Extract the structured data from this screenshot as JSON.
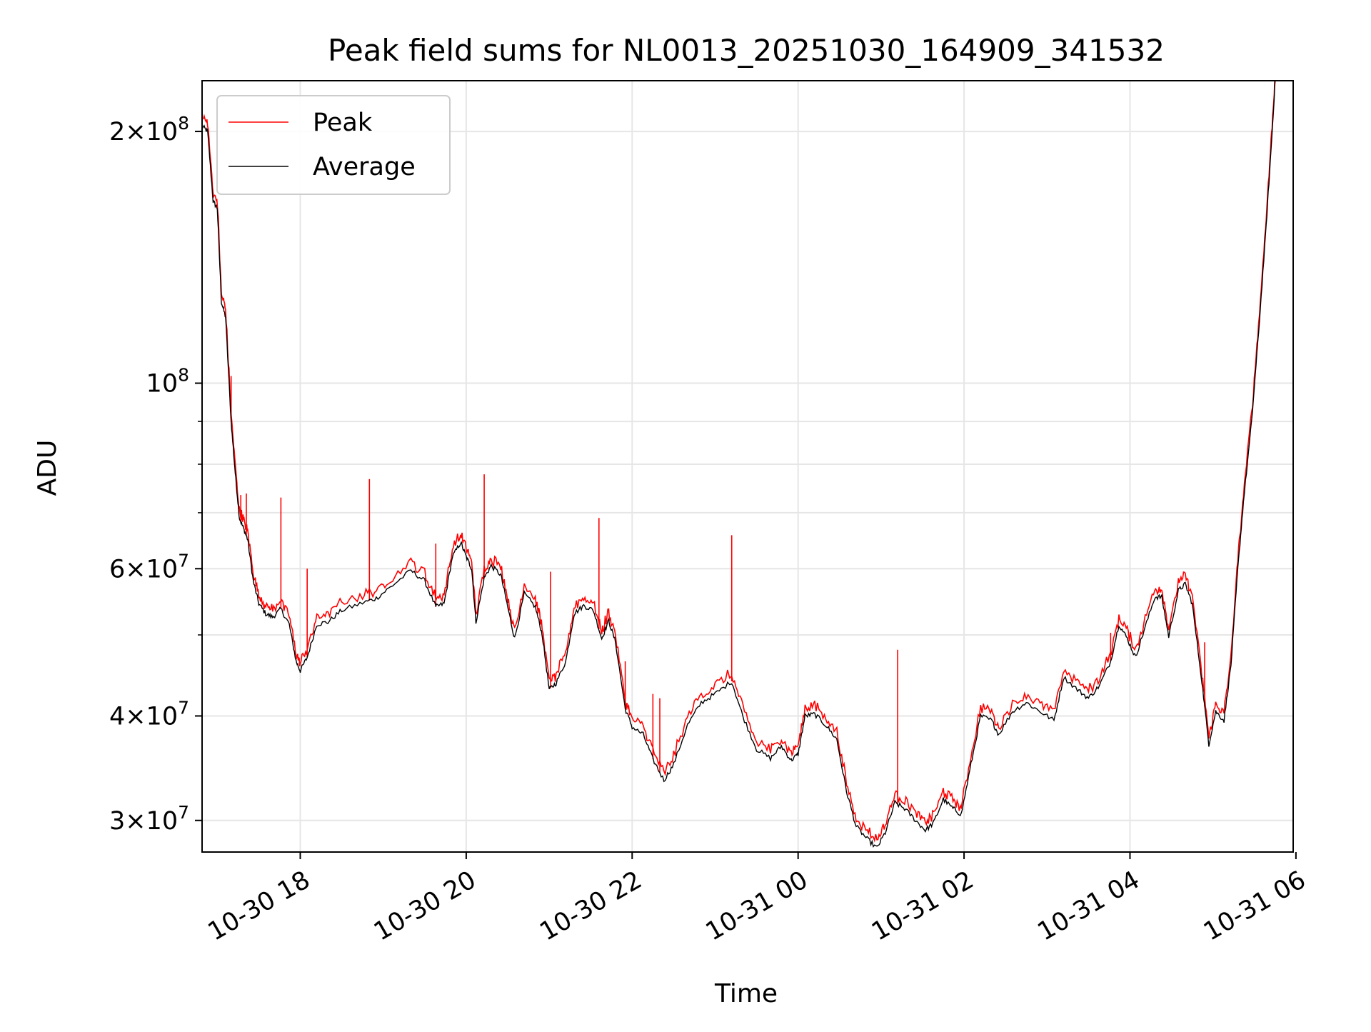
{
  "chart_data": {
    "type": "line",
    "title": "Peak field sums for NL0013_20251030_164909_341532",
    "xlabel": "Time",
    "ylabel": "ADU",
    "x_unit": "datetime",
    "xlim": [
      "2025-10-30 16:49",
      "2025-10-31 05:58"
    ],
    "ylim": [
      27500000,
      230000000
    ],
    "yscale": "log",
    "grid": true,
    "legend_position": "top-left",
    "x_ticks": [
      {
        "label": "10-30 18",
        "value": "2025-10-30 18:00"
      },
      {
        "label": "10-30 20",
        "value": "2025-10-30 20:00"
      },
      {
        "label": "10-30 22",
        "value": "2025-10-30 22:00"
      },
      {
        "label": "10-31 00",
        "value": "2025-10-31 00:00"
      },
      {
        "label": "10-31 02",
        "value": "2025-10-31 02:00"
      },
      {
        "label": "10-31 04",
        "value": "2025-10-31 04:00"
      },
      {
        "label": "10-31 06",
        "value": "2025-10-31 06:00"
      }
    ],
    "y_ticks": [
      {
        "value": 30000000,
        "mantissa": "3",
        "exponent": "7"
      },
      {
        "value": 40000000,
        "mantissa": "4",
        "exponent": "7"
      },
      {
        "value": 60000000,
        "mantissa": "6",
        "exponent": "7"
      },
      {
        "value": 100000000,
        "mantissa": "",
        "exponent": "8"
      },
      {
        "value": 200000000,
        "mantissa": "2",
        "exponent": "8"
      }
    ],
    "y_minor_ticks": [
      50000000,
      70000000,
      80000000,
      90000000
    ],
    "series": [
      {
        "name": "Peak",
        "color": "#ff0000",
        "spikes": [
          {
            "t": "2025-10-30 17:10",
            "y": 102000000
          },
          {
            "t": "2025-10-30 17:17",
            "y": 73500000
          },
          {
            "t": "2025-10-30 17:21",
            "y": 73800000
          },
          {
            "t": "2025-10-30 17:46",
            "y": 73000000
          },
          {
            "t": "2025-10-30 18:05",
            "y": 60000000
          },
          {
            "t": "2025-10-30 18:50",
            "y": 76800000
          },
          {
            "t": "2025-10-30 19:38",
            "y": 64300000
          },
          {
            "t": "2025-10-30 20:13",
            "y": 77800000
          },
          {
            "t": "2025-10-30 21:01",
            "y": 59500000
          },
          {
            "t": "2025-10-30 21:36",
            "y": 69000000
          },
          {
            "t": "2025-10-30 21:55",
            "y": 46500000
          },
          {
            "t": "2025-10-30 22:15",
            "y": 42500000
          },
          {
            "t": "2025-10-30 22:20",
            "y": 42000000
          },
          {
            "t": "2025-10-30 23:12",
            "y": 65800000
          },
          {
            "t": "2025-10-31 01:12",
            "y": 48000000
          },
          {
            "t": "2025-10-31 03:46",
            "y": 50300000
          },
          {
            "t": "2025-10-31 04:54",
            "y": 49000000
          }
        ]
      },
      {
        "name": "Average",
        "color": "#000000",
        "points": [
          [
            "2025-10-30 16:49",
            203000000
          ],
          [
            "2025-10-30 16:53",
            200000000
          ],
          [
            "2025-10-30 16:57",
            165000000
          ],
          [
            "2025-10-30 17:00",
            162000000
          ],
          [
            "2025-10-30 17:03",
            125000000
          ],
          [
            "2025-10-30 17:06",
            120000000
          ],
          [
            "2025-10-30 17:10",
            90000000
          ],
          [
            "2025-10-30 17:13",
            78000000
          ],
          [
            "2025-10-30 17:16",
            69000000
          ],
          [
            "2025-10-30 17:19",
            67000000
          ],
          [
            "2025-10-30 17:22",
            65000000
          ],
          [
            "2025-10-30 17:26",
            58000000
          ],
          [
            "2025-10-30 17:30",
            54500000
          ],
          [
            "2025-10-30 17:35",
            53000000
          ],
          [
            "2025-10-30 17:40",
            52500000
          ],
          [
            "2025-10-30 17:46",
            53700000
          ],
          [
            "2025-10-30 17:52",
            51500000
          ],
          [
            "2025-10-30 17:57",
            46500000
          ],
          [
            "2025-10-30 18:00",
            45300000
          ],
          [
            "2025-10-30 18:05",
            47000000
          ],
          [
            "2025-10-30 18:12",
            51500000
          ],
          [
            "2025-10-30 18:20",
            51800000
          ],
          [
            "2025-10-30 18:30",
            53500000
          ],
          [
            "2025-10-30 18:45",
            54600000
          ],
          [
            "2025-10-30 18:55",
            55300000
          ],
          [
            "2025-10-30 19:05",
            57000000
          ],
          [
            "2025-10-30 19:20",
            59700000
          ],
          [
            "2025-10-30 19:30",
            58000000
          ],
          [
            "2025-10-30 19:38",
            54000000
          ],
          [
            "2025-10-30 19:44",
            54500000
          ],
          [
            "2025-10-30 19:50",
            62000000
          ],
          [
            "2025-10-30 19:56",
            64500000
          ],
          [
            "2025-10-30 20:00",
            62000000
          ],
          [
            "2025-10-30 20:04",
            60000000
          ],
          [
            "2025-10-30 20:07",
            51800000
          ],
          [
            "2025-10-30 20:13",
            58500000
          ],
          [
            "2025-10-30 20:18",
            60500000
          ],
          [
            "2025-10-30 20:25",
            59000000
          ],
          [
            "2025-10-30 20:30",
            54000000
          ],
          [
            "2025-10-30 20:35",
            49500000
          ],
          [
            "2025-10-30 20:42",
            56000000
          ],
          [
            "2025-10-30 20:50",
            54000000
          ],
          [
            "2025-10-30 20:55",
            50000000
          ],
          [
            "2025-10-30 21:00",
            43000000
          ],
          [
            "2025-10-30 21:05",
            43800000
          ],
          [
            "2025-10-30 21:12",
            46500000
          ],
          [
            "2025-10-30 21:18",
            53000000
          ],
          [
            "2025-10-30 21:25",
            54200000
          ],
          [
            "2025-10-30 21:32",
            53500000
          ],
          [
            "2025-10-30 21:38",
            49500000
          ],
          [
            "2025-10-30 21:43",
            52000000
          ],
          [
            "2025-10-30 21:48",
            49000000
          ],
          [
            "2025-10-30 21:55",
            40800000
          ],
          [
            "2025-10-30 22:00",
            38800000
          ],
          [
            "2025-10-30 22:08",
            38000000
          ],
          [
            "2025-10-30 22:15",
            35500000
          ],
          [
            "2025-10-30 22:23",
            33500000
          ],
          [
            "2025-10-30 22:30",
            35000000
          ],
          [
            "2025-10-30 22:40",
            39000000
          ],
          [
            "2025-10-30 22:50",
            41500000
          ],
          [
            "2025-10-30 23:00",
            42500000
          ],
          [
            "2025-10-30 23:12",
            44000000
          ],
          [
            "2025-10-30 23:20",
            40000000
          ],
          [
            "2025-10-30 23:30",
            36500000
          ],
          [
            "2025-10-30 23:40",
            35600000
          ],
          [
            "2025-10-30 23:48",
            36800000
          ],
          [
            "2025-10-30 23:55",
            35400000
          ],
          [
            "2025-10-31 00:00",
            36000000
          ],
          [
            "2025-10-31 00:05",
            40000000
          ],
          [
            "2025-10-31 00:12",
            40200000
          ],
          [
            "2025-10-31 00:20",
            39000000
          ],
          [
            "2025-10-31 00:28",
            37500000
          ],
          [
            "2025-10-31 00:35",
            32500000
          ],
          [
            "2025-10-31 00:42",
            29500000
          ],
          [
            "2025-10-31 00:50",
            28500000
          ],
          [
            "2025-10-31 00:57",
            27800000
          ],
          [
            "2025-10-31 01:03",
            29000000
          ],
          [
            "2025-10-31 01:10",
            31500000
          ],
          [
            "2025-10-31 01:17",
            31000000
          ],
          [
            "2025-10-31 01:25",
            30000000
          ],
          [
            "2025-10-31 01:32",
            29200000
          ],
          [
            "2025-10-31 01:38",
            29800000
          ],
          [
            "2025-10-31 01:45",
            31800000
          ],
          [
            "2025-10-31 01:52",
            31000000
          ],
          [
            "2025-10-31 01:58",
            30500000
          ],
          [
            "2025-10-31 02:05",
            35000000
          ],
          [
            "2025-10-31 02:12",
            40000000
          ],
          [
            "2025-10-31 02:20",
            39500000
          ],
          [
            "2025-10-31 02:25",
            38000000
          ],
          [
            "2025-10-31 02:35",
            40500000
          ],
          [
            "2025-10-31 02:45",
            41500000
          ],
          [
            "2025-10-31 02:55",
            40500000
          ],
          [
            "2025-10-31 03:05",
            39500000
          ],
          [
            "2025-10-31 03:12",
            44500000
          ],
          [
            "2025-10-31 03:22",
            43000000
          ],
          [
            "2025-10-31 03:30",
            42000000
          ],
          [
            "2025-10-31 03:38",
            43500000
          ],
          [
            "2025-10-31 03:46",
            46500000
          ],
          [
            "2025-10-31 03:52",
            51500000
          ],
          [
            "2025-10-31 03:58",
            49500000
          ],
          [
            "2025-10-31 04:04",
            47000000
          ],
          [
            "2025-10-31 04:10",
            50500000
          ],
          [
            "2025-10-31 04:18",
            55500000
          ],
          [
            "2025-10-31 04:23",
            55500000
          ],
          [
            "2025-10-31 04:28",
            49800000
          ],
          [
            "2025-10-31 04:35",
            56500000
          ],
          [
            "2025-10-31 04:40",
            57500000
          ],
          [
            "2025-10-31 04:45",
            54500000
          ],
          [
            "2025-10-31 04:52",
            44000000
          ],
          [
            "2025-10-31 04:57",
            37000000
          ],
          [
            "2025-10-31 05:02",
            40500000
          ],
          [
            "2025-10-31 05:08",
            39500000
          ],
          [
            "2025-10-31 05:13",
            46000000
          ],
          [
            "2025-10-31 05:18",
            60000000
          ],
          [
            "2025-10-31 05:22",
            72000000
          ],
          [
            "2025-10-31 05:28",
            90000000
          ],
          [
            "2025-10-31 05:33",
            115000000
          ],
          [
            "2025-10-31 05:38",
            150000000
          ],
          [
            "2025-10-31 05:42",
            190000000
          ],
          [
            "2025-10-31 05:45",
            230000000
          ]
        ]
      }
    ]
  }
}
